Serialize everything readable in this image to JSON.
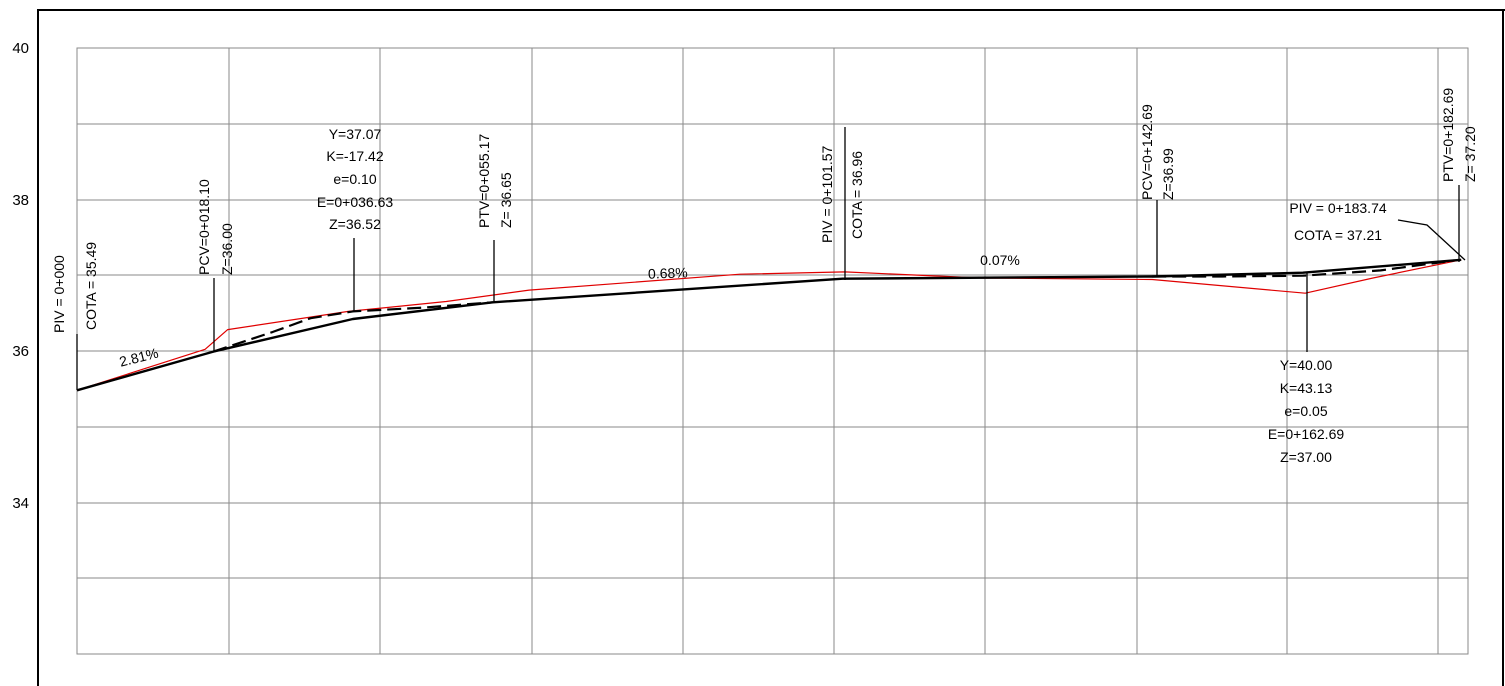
{
  "chart_data": {
    "type": "line",
    "title": "",
    "xlabel": "",
    "ylabel": "",
    "ylim": [
      32,
      40
    ],
    "y_ticks": [
      "40",
      "38",
      "36",
      "34"
    ],
    "xlim": [
      0,
      184
    ],
    "grid": true,
    "series": [
      {
        "style": "thin red line",
        "color": "#e00000",
        "points": [
          [
            0,
            35.49
          ],
          [
            17,
            36.03
          ],
          [
            20,
            36.29
          ],
          [
            36,
            36.53
          ],
          [
            49,
            36.66
          ],
          [
            60,
            36.81
          ],
          [
            88,
            37.02
          ],
          [
            101.9,
            37.05
          ],
          [
            120,
            36.97
          ],
          [
            142.7,
            36.95
          ],
          [
            163,
            36.77
          ],
          [
            172,
            36.97
          ],
          [
            183.7,
            37.21
          ]
        ]
      },
      {
        "style": "thick black grade line",
        "color": "#000000",
        "points": [
          [
            0,
            35.49
          ],
          [
            18.1,
            36.0
          ],
          [
            36.6,
            36.43
          ],
          [
            55.2,
            36.65
          ],
          [
            101.6,
            36.96
          ],
          [
            142.7,
            36.99
          ],
          [
            162.7,
            37.04
          ],
          [
            183.7,
            37.21
          ]
        ]
      },
      {
        "style": "dashed curve",
        "color": "#000000",
        "points": [
          [
            18.1,
            36.0
          ],
          [
            26,
            36.26
          ],
          [
            31,
            36.44
          ],
          [
            36.6,
            36.53
          ],
          [
            46,
            36.58
          ],
          [
            55.2,
            36.65
          ]
        ]
      },
      {
        "style": "dashed curve",
        "color": "#000000",
        "points": [
          [
            142.7,
            36.99
          ],
          [
            152,
            36.99
          ],
          [
            162.7,
            37.0
          ],
          [
            173,
            37.07
          ],
          [
            182.7,
            37.2
          ]
        ]
      }
    ]
  },
  "labels": {
    "piv_start": "PIV = 0+000",
    "cota_start": "COTA =  35.49",
    "pcv1": "PCV=0+018.10",
    "pcv1_z": "Z=36.00",
    "curve1_y": "Y=37.07",
    "curve1_k": "K=-17.42",
    "curve1_e": "e=0.10",
    "curve1_E": "E=0+036.63",
    "curve1_z": "Z=36.52",
    "ptv1": "PTV=0+055.17",
    "ptv1_z": "Z= 36.65",
    "piv_mid": "PIV = 0+101.57",
    "cota_mid": "COTA =  36.96",
    "pcv2": "PCV=0+142.69",
    "pcv2_z": "Z=36.99",
    "ptv2": "PTV=0+182.69",
    "ptv2_z": "Z= 37.20",
    "piv_end": "PIV = 0+183.74",
    "cota_end": "COTA =  37.21",
    "curve2_y": "Y=40.00",
    "curve2_k": "K=43.13",
    "curve2_e": "e=0.05",
    "curve2_E": "E=0+162.69",
    "curve2_z": "Z=37.00",
    "grade1": "2.81%",
    "grade2": "0.68%",
    "grade3": "0.07%"
  }
}
